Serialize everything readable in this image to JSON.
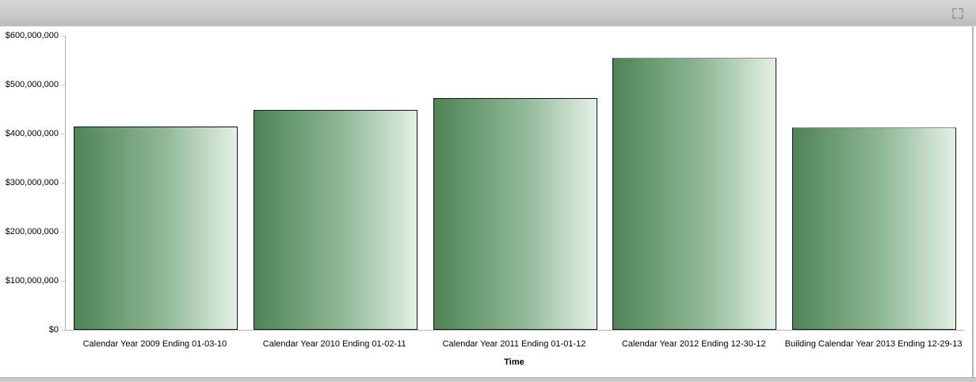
{
  "header": {
    "icons": {
      "maximize": "maximize-icon"
    }
  },
  "chart_data": {
    "type": "bar",
    "title": "",
    "xlabel": "Time",
    "ylabel": "",
    "ylim": [
      0,
      600000000
    ],
    "grid": false,
    "legend": "none",
    "categories": [
      "Calendar Year 2009 Ending 01-03-10",
      "Calendar Year 2010 Ending 01-02-11",
      "Calendar Year 2011 Ending 01-01-12",
      "Calendar Year 2012 Ending 12-30-12",
      "Building Calendar Year 2013 Ending 12-29-13"
    ],
    "values": [
      415000000,
      448000000,
      472000000,
      555000000,
      413000000
    ],
    "y_ticks": [
      {
        "label": "$600,000,000",
        "value": 600000000
      },
      {
        "label": "$500,000,000",
        "value": 500000000
      },
      {
        "label": "$400,000,000",
        "value": 400000000
      },
      {
        "label": "$300,000,000",
        "value": 300000000
      },
      {
        "label": "$200,000,000",
        "value": 200000000
      },
      {
        "label": "$100,000,000",
        "value": 100000000
      },
      {
        "label": "$0",
        "value": 0
      }
    ]
  },
  "colors": {
    "background": "#ffffff",
    "bar_gradient": [
      "#4e8456",
      "#90b896",
      "#e3f0e6"
    ],
    "bar_border": "#141414",
    "bar_border_top": [
      "#141414",
      "#141414",
      "#141414",
      "#8e8e8e",
      "#8e8e8e"
    ],
    "axis_line": "#aab1b7",
    "tick": "#c2cdd6",
    "header_gradient": [
      "#d9d9d9",
      "#bcbcbc"
    ],
    "status_bar": "#c8c8c8",
    "panel_border": "#b3b3b3",
    "icon": "#989898"
  }
}
